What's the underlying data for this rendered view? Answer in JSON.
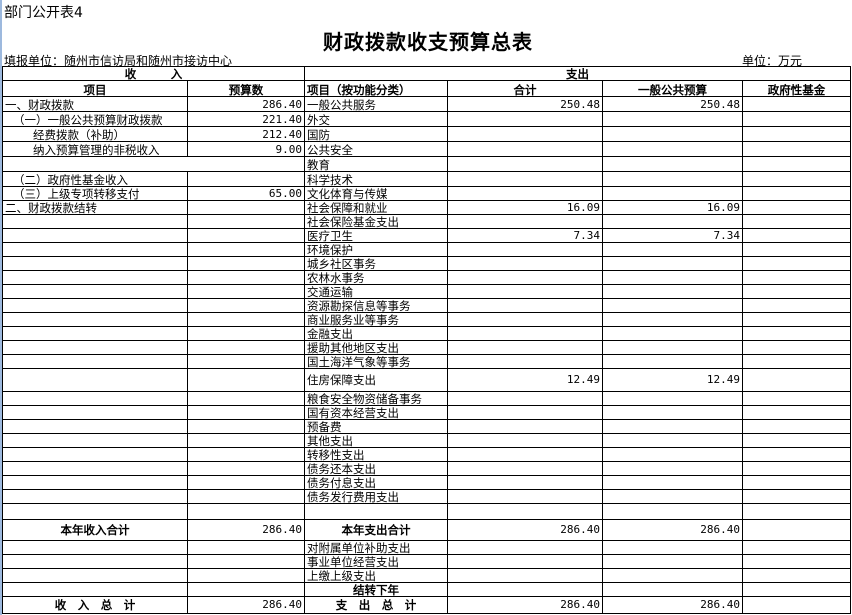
{
  "sheet_label": "部门公开表4",
  "title": "财政拨款收支预算总表",
  "reporting_unit": "填报单位：随州市信访局和随州市接访中心",
  "unit": "单位：万元",
  "headers": {
    "income": "收　　　入",
    "expense": "支出",
    "item": "项目",
    "budget": "预算数",
    "item_func": "项目（按功能分类）",
    "total": "合计",
    "general": "一般公共预算",
    "fund": "政府性基金"
  },
  "rows": [
    {
      "l": "一、财政拨款",
      "a": "286.40",
      "r": "一般公共服务",
      "t": "250.48",
      "g": "250.48",
      "f": ""
    },
    {
      "l": "（一）一般公共预算财政拨款",
      "a": "221.40",
      "r": "外交",
      "t": "",
      "g": "",
      "f": ""
    },
    {
      "l": "经费拨款（补助）",
      "a": "212.40",
      "r": "国防",
      "t": "",
      "g": "",
      "f": ""
    },
    {
      "l": "纳入预算管理的非税收入",
      "a": "9.00",
      "r": "公共安全",
      "t": "",
      "g": "",
      "f": ""
    },
    {
      "l": "",
      "a": "",
      "r": "教育",
      "t": "",
      "g": "",
      "f": ""
    },
    {
      "l": "（二）政府性基金收入",
      "a": "",
      "r": "科学技术",
      "t": "",
      "g": "",
      "f": ""
    },
    {
      "l": "（三）上级专项转移支付",
      "a": "65.00",
      "r": "文化体育与传媒",
      "t": "",
      "g": "",
      "f": ""
    },
    {
      "l": "二、财政拨款结转",
      "a": "",
      "r": "社会保障和就业",
      "t": "16.09",
      "g": "16.09",
      "f": ""
    },
    {
      "l": "",
      "a": "",
      "r": "社会保险基金支出",
      "t": "",
      "g": "",
      "f": ""
    },
    {
      "l": "",
      "a": "",
      "r": "医疗卫生",
      "t": "7.34",
      "g": "7.34",
      "f": ""
    },
    {
      "l": "",
      "a": "",
      "r": "环境保护",
      "t": "",
      "g": "",
      "f": ""
    },
    {
      "l": "",
      "a": "",
      "r": "城乡社区事务",
      "t": "",
      "g": "",
      "f": ""
    },
    {
      "l": "",
      "a": "",
      "r": "农林水事务",
      "t": "",
      "g": "",
      "f": ""
    },
    {
      "l": "",
      "a": "",
      "r": "交通运输",
      "t": "",
      "g": "",
      "f": ""
    },
    {
      "l": "",
      "a": "",
      "r": "资源勘探信息等事务",
      "t": "",
      "g": "",
      "f": ""
    },
    {
      "l": "",
      "a": "",
      "r": "商业服务业等事务",
      "t": "",
      "g": "",
      "f": ""
    },
    {
      "l": "",
      "a": "",
      "r": "金融支出",
      "t": "",
      "g": "",
      "f": ""
    },
    {
      "l": "",
      "a": "",
      "r": "援助其他地区支出",
      "t": "",
      "g": "",
      "f": ""
    },
    {
      "l": "",
      "a": "",
      "r": "国土海洋气象等事务",
      "t": "",
      "g": "",
      "f": ""
    },
    {
      "l": "",
      "a": "",
      "r": "住房保障支出",
      "t": "12.49",
      "g": "12.49",
      "f": ""
    },
    {
      "l": "",
      "a": "",
      "r": "粮食安全物资储备事务",
      "t": "",
      "g": "",
      "f": ""
    },
    {
      "l": "",
      "a": "",
      "r": "国有资本经营支出",
      "t": "",
      "g": "",
      "f": ""
    },
    {
      "l": "",
      "a": "",
      "r": "预备费",
      "t": "",
      "g": "",
      "f": ""
    },
    {
      "l": "",
      "a": "",
      "r": "其他支出",
      "t": "",
      "g": "",
      "f": ""
    },
    {
      "l": "",
      "a": "",
      "r": "转移性支出",
      "t": "",
      "g": "",
      "f": ""
    },
    {
      "l": "",
      "a": "",
      "r": "债务还本支出",
      "t": "",
      "g": "",
      "f": ""
    },
    {
      "l": "",
      "a": "",
      "r": "债务付息支出",
      "t": "",
      "g": "",
      "f": ""
    },
    {
      "l": "",
      "a": "",
      "r": "债务发行费用支出",
      "t": "",
      "g": "",
      "f": ""
    },
    {
      "l": "",
      "a": "",
      "r": "",
      "t": "",
      "g": "",
      "f": ""
    },
    {
      "l": "本年收入合计",
      "a": "286.40",
      "r": "本年支出合计",
      "t": "286.40",
      "g": "286.40",
      "f": ""
    },
    {
      "l": "",
      "a": "",
      "r": "对附属单位补助支出",
      "t": "",
      "g": "",
      "f": ""
    },
    {
      "l": "",
      "a": "",
      "r": "事业单位经营支出",
      "t": "",
      "g": "",
      "f": ""
    },
    {
      "l": "",
      "a": "",
      "r": "上缴上级支出",
      "t": "",
      "g": "",
      "f": ""
    },
    {
      "l": "",
      "a": "",
      "r": "结转下年",
      "t": "",
      "g": "",
      "f": ""
    },
    {
      "l": "收　入　总　计",
      "a": "286.40",
      "r": "支　出　总　计",
      "t": "286.40",
      "g": "286.40",
      "f": ""
    }
  ]
}
